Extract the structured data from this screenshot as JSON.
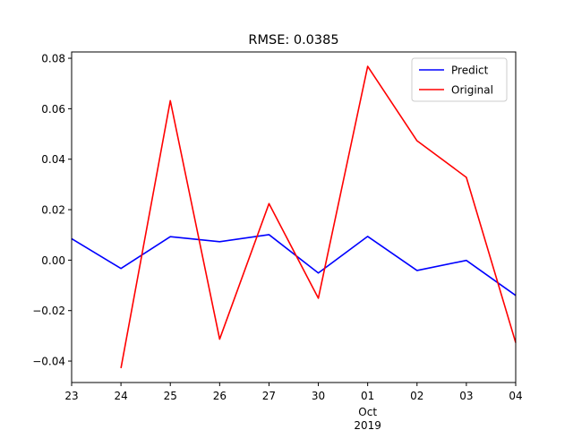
{
  "chart_data": {
    "type": "line",
    "title": "RMSE: 0.0385",
    "xlabel": "",
    "ylabel": "",
    "categories": [
      "23",
      "24",
      "25",
      "26",
      "27",
      "30",
      "01",
      "02",
      "03",
      "04"
    ],
    "x_sublabels": {
      "month_label": "Oct",
      "year_label": "2019",
      "at_category": "01"
    },
    "ylim": [
      -0.0485,
      0.0825
    ],
    "yticks": [
      -0.04,
      -0.02,
      0.0,
      0.02,
      0.04,
      0.06,
      0.08
    ],
    "ytick_labels": [
      "−0.04",
      "−0.02",
      "0.00",
      "0.02",
      "0.04",
      "0.06",
      "0.08"
    ],
    "grid": false,
    "legend_position": "top-right",
    "series": [
      {
        "name": "Predict",
        "color": "#0000ff",
        "values": [
          0.0085,
          -0.0033,
          0.0093,
          0.0073,
          0.0101,
          -0.0051,
          0.0094,
          -0.0041,
          -0.0001,
          -0.014
        ]
      },
      {
        "name": "Original",
        "color": "#ff0000",
        "values": [
          null,
          -0.0428,
          0.0632,
          -0.0313,
          0.0224,
          -0.0151,
          0.0768,
          0.0473,
          0.0328,
          -0.0327
        ]
      }
    ]
  }
}
